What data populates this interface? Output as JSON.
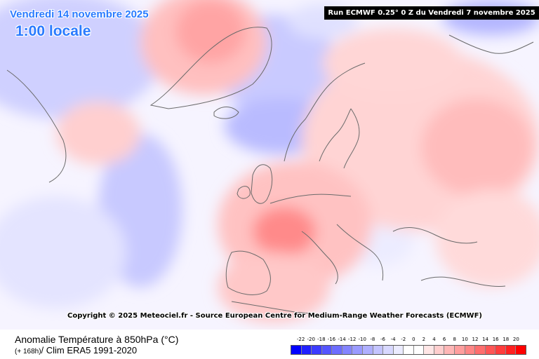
{
  "header": {
    "date": "Vendredi 14 novembre 2025",
    "time": "1:00 locale",
    "run": "Run ECMWF 0.25° 0 Z du Vendredi 7 novembre 2025"
  },
  "map": {
    "copyright": "Copyright © 2025 Meteociel.fr - Source European Centre for Medium-Range Weather Forecasts (ECMWF)",
    "colors": {
      "coast": "#6a6a6a",
      "cold_1": "#dfe0ff",
      "cold_2": "#c8c9ff",
      "cold_3": "#aeb0ff",
      "warm_1": "#ffe2e2",
      "warm_2": "#ffc6c6",
      "warm_3": "#ffa9a9",
      "warm_4": "#ff8c8c",
      "warm_5": "#ff6e6e"
    }
  },
  "footer": {
    "title": "Anomalie Température à 850hPa (°C)",
    "step": "(+ 168h)",
    "clim": "/ Clim ERA5 1991-2020"
  },
  "legend": {
    "ticks": [
      "-22",
      "-20",
      "-18",
      "-16",
      "-14",
      "-12",
      "-10",
      "-8",
      "-6",
      "-4",
      "-2",
      "0",
      "2",
      "4",
      "6",
      "8",
      "10",
      "12",
      "14",
      "16",
      "18",
      "20"
    ],
    "colors": [
      "#0000ff",
      "#2020ff",
      "#3c3cff",
      "#5555ff",
      "#6d6dff",
      "#8484ff",
      "#9a9aff",
      "#afafff",
      "#c4c4ff",
      "#d8d8ff",
      "#ebebff",
      "#ffffff",
      "#ffffff",
      "#ffe6e6",
      "#ffcece",
      "#ffb6b6",
      "#ff9e9e",
      "#ff8686",
      "#ff6e6e",
      "#ff5555",
      "#ff3c3c",
      "#ff2020",
      "#ff0000"
    ]
  }
}
